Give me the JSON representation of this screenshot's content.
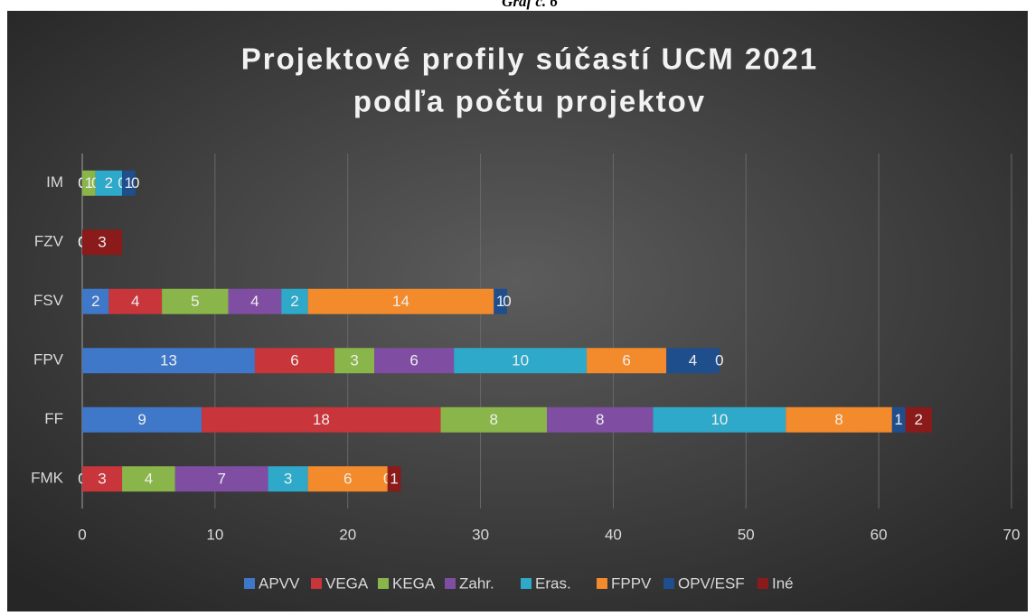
{
  "header": "Graf č. 6",
  "chart_data": {
    "type": "stacked-barh",
    "title": "Projektové profily súčastí UCM 2021",
    "subtitle": "podľa počtu projektov",
    "categories": [
      "FMK",
      "FF",
      "FPV",
      "FSV",
      "FZV",
      "IM"
    ],
    "series": [
      {
        "name": "APVV",
        "color": "#3f78c8",
        "values": [
          0,
          9,
          13,
          2,
          0,
          0
        ]
      },
      {
        "name": "VEGA",
        "color": "#c8353a",
        "values": [
          3,
          18,
          6,
          4,
          0,
          0
        ]
      },
      {
        "name": "KEGA",
        "color": "#8ab54a",
        "values": [
          4,
          8,
          3,
          5,
          0,
          1
        ]
      },
      {
        "name": "Zahr.",
        "color": "#7f4ea3",
        "values": [
          7,
          8,
          6,
          4,
          0,
          0
        ]
      },
      {
        "name": "Eras.",
        "color": "#2fa9c9",
        "values": [
          3,
          10,
          10,
          2,
          0,
          2
        ]
      },
      {
        "name": "FPPV",
        "color": "#f38b2c",
        "values": [
          6,
          8,
          6,
          14,
          0,
          0
        ]
      },
      {
        "name": "OPV/ESF",
        "color": "#1f4e8c",
        "values": [
          0,
          1,
          4,
          1,
          0,
          1
        ]
      },
      {
        "name": "Iné",
        "color": "#8b1a1a",
        "values": [
          1,
          2,
          0,
          0,
          3,
          0
        ]
      }
    ],
    "xlim": [
      0,
      70
    ],
    "xticks": [
      0,
      10,
      20,
      30,
      40,
      50,
      60,
      70
    ],
    "grid": true,
    "legend": "bottom"
  }
}
